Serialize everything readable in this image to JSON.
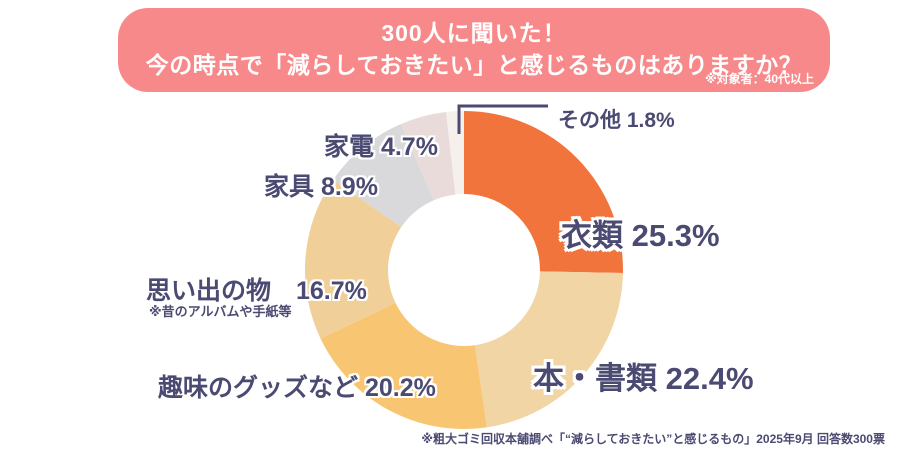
{
  "page": {
    "background": "#FFFFFF"
  },
  "header": {
    "title_line1": "300人に聞いた！",
    "title_line2": "今の時点で「減らしておきたい」と感じるものはありますか？",
    "subtitle": "※対象者：40代以上",
    "banner_color": "#F8898B",
    "title_text_color": "#FFFFFF"
  },
  "chart_data": {
    "type": "pie",
    "subtype": "donut",
    "direction": "clockwise",
    "start_angle_deg": 0,
    "inner_radius_ratio": 0.48,
    "total": 100,
    "label_color": "#4A4A72",
    "leader_line_color": "#4A4A72",
    "slices": [
      {
        "label": "衣類",
        "value": 25.3,
        "color": "#F1743C",
        "display": "衣類 25.3%"
      },
      {
        "label": "本・書類",
        "value": 22.4,
        "color": "#F1D5A4",
        "display": "本・書類 22.4%"
      },
      {
        "label": "趣味のグッズなど",
        "value": 20.2,
        "color": "#F8C672",
        "display": "趣味のグッズなど 20.2%"
      },
      {
        "label": "思い出の物",
        "value": 16.7,
        "color": "#F0CF98",
        "display": "思い出の物　16.7%",
        "note": "※昔のアルバムや手紙等"
      },
      {
        "label": "家具",
        "value": 8.9,
        "color": "#D9D8DB",
        "display": "家具 8.9%"
      },
      {
        "label": "家電",
        "value": 4.7,
        "color": "#E9DBD9",
        "display": "家電 4.7%"
      },
      {
        "label": "その他",
        "value": 1.8,
        "color": "#F5F0EC",
        "display": "その他 1.8%"
      }
    ]
  },
  "footer": {
    "source_note": "※粗大ゴミ回収本舗調べ「“減らしておきたい”と感じるもの」2025年9月 回答数300票"
  }
}
